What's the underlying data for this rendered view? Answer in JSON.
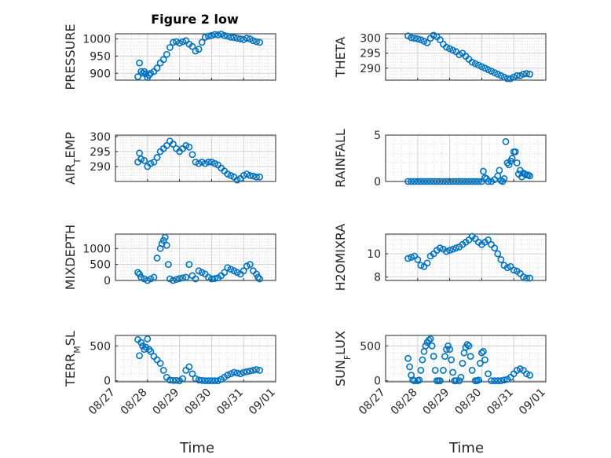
{
  "figure": {
    "title": "Figure 2 low",
    "xlabel": "Time",
    "x_ticks": [
      "08/27",
      "08/28",
      "08/29",
      "08/30",
      "08/31",
      "09/01"
    ],
    "marker_color": "#0072BD"
  },
  "chart_data": [
    {
      "type": "scatter",
      "id": "pressure",
      "ylabel": "PRESSURE",
      "ylabel_sub": "",
      "ylim": [
        880,
        1015
      ],
      "yticks": [
        900,
        950,
        1000
      ],
      "col": 0,
      "row": 0,
      "x": [
        0.7,
        0.75,
        0.8,
        0.85,
        0.9,
        0.95,
        1.0,
        1.05,
        1.1,
        1.2,
        1.3,
        1.4,
        1.5,
        1.6,
        1.7,
        1.8,
        1.9,
        2.0,
        2.1,
        2.2,
        2.3,
        2.4,
        2.5,
        2.6,
        2.7,
        2.8,
        2.9,
        3.0,
        3.1,
        3.2,
        3.3,
        3.4,
        3.5,
        3.6,
        3.7,
        3.8,
        3.9,
        4.0,
        4.1,
        4.2,
        4.3,
        4.4,
        4.5
      ],
      "y": [
        890,
        930,
        905,
        900,
        905,
        898,
        888,
        895,
        900,
        905,
        915,
        930,
        940,
        955,
        975,
        990,
        992,
        988,
        992,
        995,
        985,
        978,
        965,
        970,
        990,
        1005,
        1008,
        1010,
        1013,
        1012,
        1014,
        1010,
        1008,
        1005,
        1004,
        1002,
        1000,
        998,
        1002,
        1000,
        995,
        992,
        990
      ]
    },
    {
      "type": "scatter",
      "id": "theta",
      "ylabel": "THETA",
      "ylabel_sub": "",
      "ylim": [
        286,
        301.5
      ],
      "yticks": [
        290,
        295,
        300
      ],
      "col": 1,
      "row": 0,
      "x": [
        0.7,
        0.8,
        0.9,
        1.0,
        1.1,
        1.2,
        1.3,
        1.4,
        1.5,
        1.6,
        1.7,
        1.8,
        1.9,
        2.0,
        2.1,
        2.2,
        2.3,
        2.4,
        2.5,
        2.6,
        2.7,
        2.8,
        2.9,
        3.0,
        3.1,
        3.2,
        3.3,
        3.4,
        3.5,
        3.6,
        3.7,
        3.8,
        3.9,
        4.0,
        4.1,
        4.2,
        4.3,
        4.4,
        4.5
      ],
      "y": [
        300.8,
        300.2,
        300.0,
        299.8,
        299.5,
        299.0,
        298.5,
        300.0,
        301.0,
        300.5,
        299.5,
        298.0,
        297.0,
        296.5,
        296.0,
        295.5,
        294.5,
        295.0,
        294.0,
        293.0,
        292.0,
        291.5,
        291.0,
        290.5,
        290.0,
        289.5,
        289.0,
        288.5,
        288.0,
        287.5,
        287.0,
        286.5,
        286.5,
        287.0,
        287.5,
        287.5,
        288.0,
        288.2,
        288.0
      ]
    },
    {
      "type": "scatter",
      "id": "airtemp",
      "ylabel": "AIR",
      "ylabel_sub": "T",
      "ylabel_rest": "EMP",
      "ylim": [
        285,
        300.5
      ],
      "yticks": [
        290,
        295,
        300
      ],
      "col": 0,
      "row": 1,
      "x": [
        0.7,
        0.75,
        0.8,
        0.9,
        1.0,
        1.1,
        1.2,
        1.3,
        1.4,
        1.5,
        1.6,
        1.7,
        1.8,
        1.9,
        2.0,
        2.1,
        2.2,
        2.3,
        2.4,
        2.5,
        2.6,
        2.7,
        2.8,
        2.9,
        3.0,
        3.1,
        3.2,
        3.3,
        3.4,
        3.5,
        3.6,
        3.7,
        3.8,
        3.9,
        4.0,
        4.1,
        4.2,
        4.3,
        4.4,
        4.5
      ],
      "y": [
        291.5,
        294.5,
        292.5,
        292.0,
        290.0,
        291.0,
        291.5,
        293.0,
        295.0,
        296.0,
        297.0,
        298.5,
        297.5,
        296.0,
        295.0,
        296.0,
        297.0,
        296.5,
        294.0,
        291.5,
        291.0,
        291.5,
        291.0,
        291.5,
        291.5,
        291.0,
        290.5,
        289.5,
        288.5,
        287.5,
        287.0,
        286.5,
        285.5,
        286.0,
        287.0,
        287.5,
        287.0,
        286.8,
        286.5,
        286.5
      ]
    },
    {
      "type": "scatter",
      "id": "rainfall",
      "ylabel": "RAINFALL",
      "ylabel_sub": "",
      "ylim": [
        0,
        5
      ],
      "yticks": [
        0,
        5
      ],
      "col": 1,
      "row": 1,
      "x": [
        0.7,
        0.8,
        0.9,
        1.0,
        1.1,
        1.2,
        1.3,
        1.4,
        1.5,
        1.6,
        1.7,
        1.8,
        1.9,
        2.0,
        2.1,
        2.2,
        2.3,
        2.4,
        2.5,
        2.6,
        2.7,
        2.8,
        2.9,
        3.0,
        3.05,
        3.1,
        3.15,
        3.2,
        3.3,
        3.4,
        3.5,
        3.55,
        3.6,
        3.65,
        3.7,
        3.75,
        3.8,
        3.85,
        3.9,
        3.95,
        4.0,
        4.05,
        4.1,
        4.15,
        4.2,
        4.25,
        4.3,
        4.35,
        4.4,
        4.45,
        4.5
      ],
      "y": [
        0,
        0,
        0,
        0,
        0,
        0,
        0,
        0,
        0,
        0,
        0,
        0,
        0,
        0,
        0,
        0,
        0,
        0,
        0,
        0,
        0,
        0,
        0,
        0,
        1.1,
        0.4,
        0.3,
        0,
        0,
        0.2,
        0.6,
        1.2,
        0.1,
        0,
        0.3,
        4.3,
        2.0,
        1.8,
        2.2,
        2.5,
        3.2,
        3.2,
        2.0,
        0.8,
        1.2,
        0.5,
        0.9,
        0.8,
        0.7,
        0.7,
        0.6
      ]
    },
    {
      "type": "scatter",
      "id": "mixdepth",
      "ylabel": "MIXDEPTH",
      "ylabel_sub": "",
      "ylim": [
        0,
        1450
      ],
      "yticks": [
        0,
        500,
        1000
      ],
      "col": 0,
      "row": 2,
      "x": [
        0.7,
        0.75,
        0.8,
        0.9,
        1.0,
        1.1,
        1.2,
        1.3,
        1.4,
        1.45,
        1.5,
        1.55,
        1.6,
        1.65,
        1.7,
        1.8,
        1.9,
        2.0,
        2.1,
        2.2,
        2.3,
        2.4,
        2.5,
        2.6,
        2.7,
        2.8,
        2.9,
        3.0,
        3.1,
        3.2,
        3.3,
        3.4,
        3.5,
        3.6,
        3.7,
        3.8,
        3.9,
        4.0,
        4.1,
        4.2,
        4.3,
        4.4,
        4.45,
        4.5
      ],
      "y": [
        250,
        200,
        100,
        50,
        0,
        50,
        100,
        700,
        1000,
        1150,
        1250,
        1350,
        1100,
        500,
        50,
        0,
        30,
        60,
        80,
        100,
        500,
        150,
        50,
        300,
        250,
        200,
        100,
        50,
        60,
        80,
        150,
        250,
        400,
        350,
        300,
        250,
        200,
        300,
        450,
        500,
        300,
        200,
        100,
        50
      ]
    },
    {
      "type": "scatter",
      "id": "h2omixra",
      "ylabel": "H2OMIXRA",
      "ylabel_sub": "",
      "ylim": [
        7.7,
        11.7
      ],
      "yticks": [
        8,
        10
      ],
      "col": 1,
      "row": 2,
      "x": [
        0.7,
        0.8,
        0.9,
        1.0,
        1.1,
        1.2,
        1.3,
        1.4,
        1.5,
        1.6,
        1.7,
        1.8,
        1.9,
        2.0,
        2.1,
        2.2,
        2.3,
        2.4,
        2.5,
        2.6,
        2.7,
        2.8,
        2.9,
        3.0,
        3.1,
        3.2,
        3.3,
        3.4,
        3.5,
        3.6,
        3.7,
        3.8,
        3.9,
        4.0,
        4.1,
        4.2,
        4.3,
        4.4,
        4.5
      ],
      "y": [
        9.6,
        9.7,
        9.8,
        9.5,
        9.0,
        8.9,
        9.2,
        9.8,
        10.0,
        10.3,
        10.5,
        10.4,
        10.2,
        10.3,
        10.4,
        10.5,
        10.6,
        10.8,
        11.0,
        11.2,
        11.5,
        11.3,
        11.0,
        10.8,
        11.0,
        11.2,
        10.8,
        10.5,
        10.0,
        9.5,
        9.0,
        8.8,
        8.9,
        8.6,
        8.5,
        8.3,
        8.0,
        7.9,
        7.9
      ]
    },
    {
      "type": "scatter",
      "id": "terrmsl",
      "ylabel": "TERR",
      "ylabel_sub": "M",
      "ylabel_rest": "SL",
      "ylim": [
        -15,
        650
      ],
      "yticks": [
        0,
        500
      ],
      "col": 0,
      "row": 3,
      "x": [
        0.7,
        0.75,
        0.8,
        0.85,
        0.9,
        0.95,
        1.0,
        1.05,
        1.1,
        1.2,
        1.3,
        1.4,
        1.5,
        1.6,
        1.7,
        1.8,
        1.9,
        2.0,
        2.1,
        2.2,
        2.3,
        2.4,
        2.5,
        2.6,
        2.7,
        2.8,
        2.9,
        3.0,
        3.1,
        3.2,
        3.3,
        3.4,
        3.5,
        3.6,
        3.7,
        3.8,
        3.9,
        4.0,
        4.1,
        4.2,
        4.3,
        4.4,
        4.5
      ],
      "y": [
        590,
        360,
        550,
        500,
        450,
        480,
        600,
        450,
        420,
        350,
        300,
        250,
        150,
        50,
        10,
        5,
        5,
        0,
        30,
        150,
        200,
        100,
        30,
        10,
        5,
        0,
        0,
        0,
        0,
        0,
        20,
        50,
        80,
        100,
        120,
        110,
        100,
        120,
        130,
        140,
        150,
        160,
        150
      ]
    },
    {
      "type": "scatter",
      "id": "sunflux",
      "ylabel": "SUN",
      "ylabel_sub": "F",
      "ylabel_rest": "LUX",
      "ylim": [
        -15,
        650
      ],
      "yticks": [
        0,
        500
      ],
      "col": 1,
      "row": 3,
      "x": [
        0.7,
        0.75,
        0.8,
        0.85,
        0.9,
        1.0,
        1.05,
        1.1,
        1.15,
        1.2,
        1.25,
        1.3,
        1.35,
        1.4,
        1.45,
        1.5,
        1.55,
        1.6,
        1.65,
        1.7,
        1.8,
        1.85,
        1.9,
        1.95,
        2.0,
        2.05,
        2.1,
        2.15,
        2.2,
        2.3,
        2.35,
        2.4,
        2.45,
        2.5,
        2.55,
        2.6,
        2.65,
        2.7,
        2.8,
        2.85,
        2.9,
        2.95,
        3.0,
        3.05,
        3.1,
        3.2,
        3.3,
        3.4,
        3.5,
        3.6,
        3.7,
        3.8,
        3.9,
        4.0,
        4.1,
        4.2,
        4.3,
        4.4,
        4.5
      ],
      "y": [
        320,
        200,
        80,
        10,
        0,
        0,
        10,
        150,
        300,
        420,
        500,
        550,
        580,
        600,
        500,
        350,
        150,
        0,
        0,
        0,
        150,
        350,
        450,
        500,
        450,
        300,
        120,
        0,
        0,
        0,
        50,
        250,
        400,
        480,
        520,
        500,
        350,
        150,
        0,
        0,
        10,
        250,
        400,
        420,
        300,
        100,
        0,
        0,
        0,
        0,
        10,
        20,
        50,
        100,
        150,
        170,
        150,
        100,
        80
      ]
    }
  ]
}
